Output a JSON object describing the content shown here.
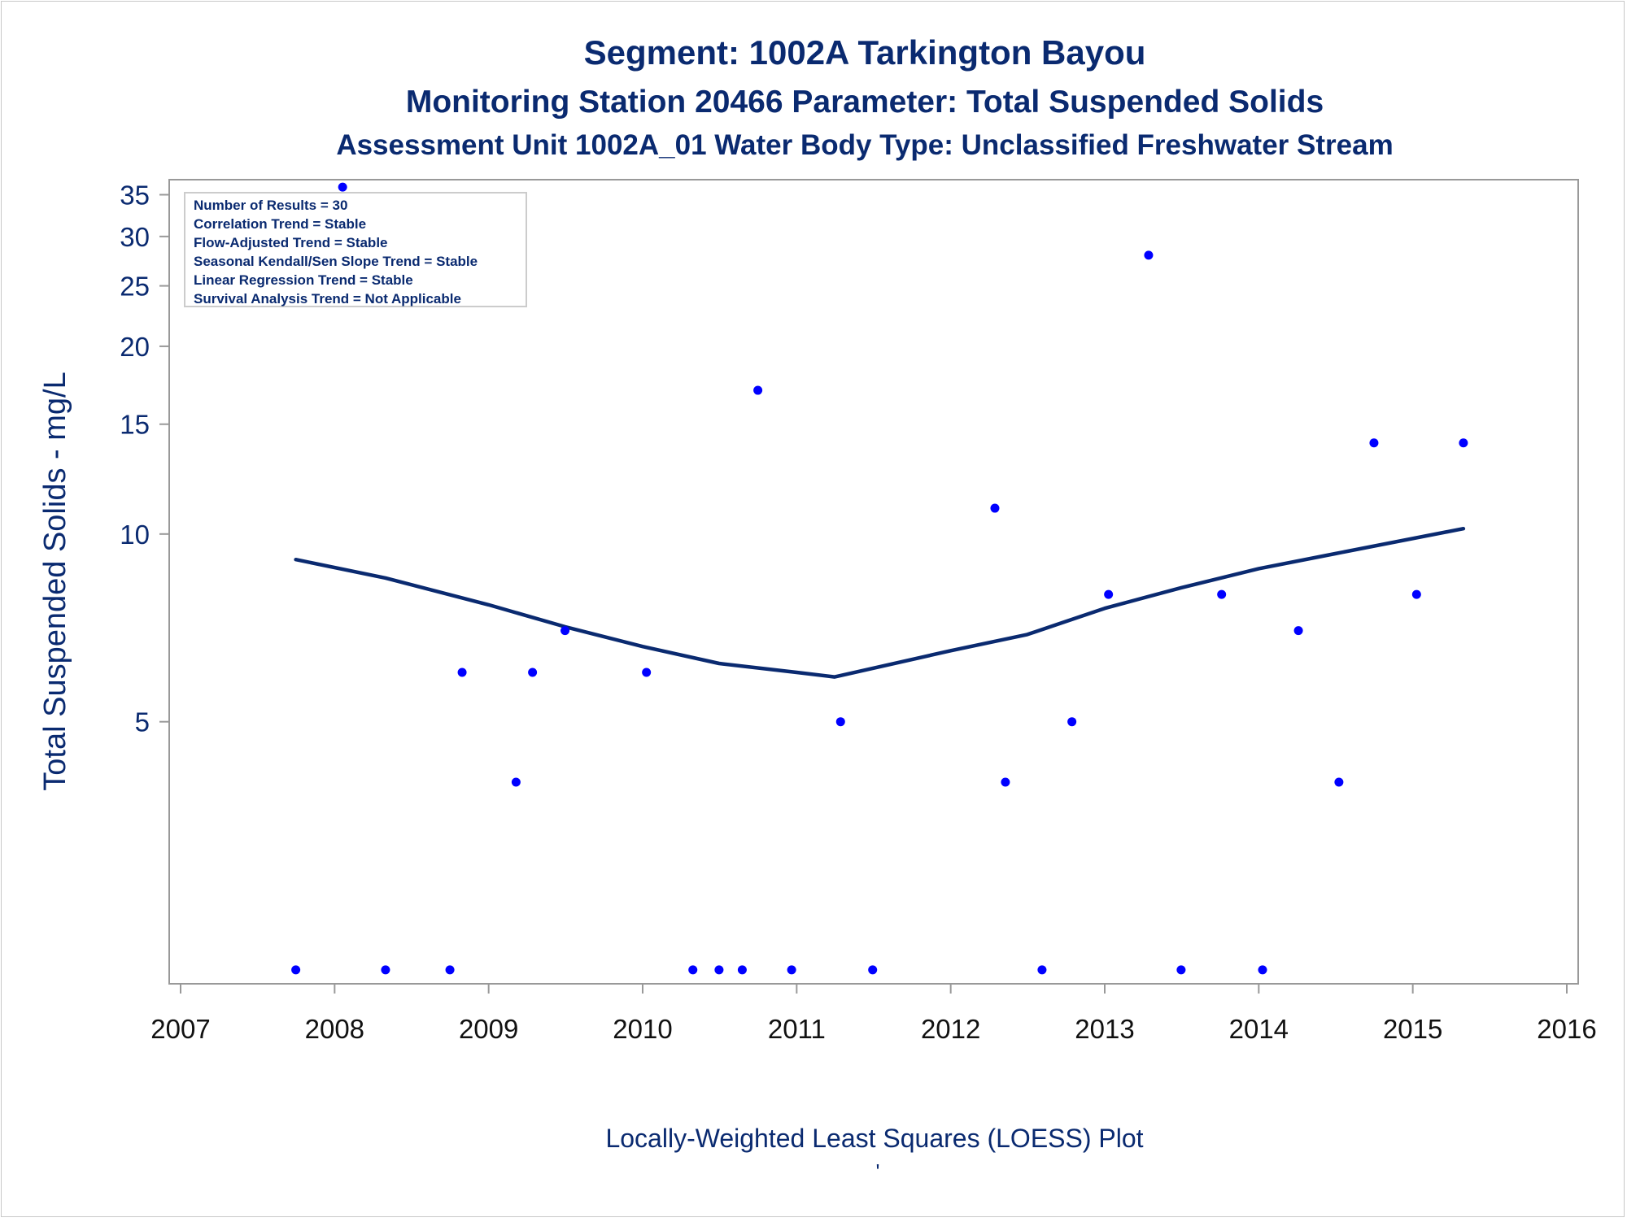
{
  "chart_data": {
    "type": "scatter",
    "title": "Segment: 1002A  Tarkington Bayou",
    "subtitle": "Monitoring Station 20466 Parameter: Total Suspended Solids",
    "subtitle2": "Assessment Unit 1002A_01   Water Body Type: Unclassified Freshwater Stream",
    "ylabel": "Total Suspended Solids - mg/L",
    "xlabel": "Locally-Weighted Least Squares (LOESS) Plot",
    "footnote": "'",
    "y_scale": "log",
    "xlim": [
      "2007-01-01",
      "2016-01-01"
    ],
    "ylim": [
      1.9,
      37
    ],
    "x_ticks": [
      "2007",
      "2008",
      "2009",
      "2010",
      "2011",
      "2012",
      "2013",
      "2014",
      "2015",
      "2016"
    ],
    "y_ticks": [
      5,
      10,
      15,
      20,
      25,
      30,
      35
    ],
    "y_tick_labels": [
      "5",
      "10",
      "15",
      "20",
      "25",
      "30",
      "35"
    ],
    "grid": false,
    "legend": {
      "placement": "top-left",
      "lines": [
        "Number of Results = 30",
        "Correlation Trend = Stable",
        "Flow-Adjusted Trend = Stable",
        "Seasonal Kendall/Sen Slope Trend = Stable",
        "Linear Regression Trend = Stable",
        "Survival Analysis Trend = Not Applicable"
      ]
    },
    "colors": {
      "points": "#0000ff",
      "loess": "#0a2a70",
      "text": "#0a2a70",
      "axis": "#999999"
    },
    "points": [
      {
        "x": "2007-10-01",
        "y": 2
      },
      {
        "x": "2008-01-20",
        "y": 36
      },
      {
        "x": "2008-05-01",
        "y": 2
      },
      {
        "x": "2008-10-01",
        "y": 2
      },
      {
        "x": "2008-10-30",
        "y": 6
      },
      {
        "x": "2009-03-07",
        "y": 4
      },
      {
        "x": "2009-04-15",
        "y": 6
      },
      {
        "x": "2009-07-01",
        "y": 7
      },
      {
        "x": "2010-01-10",
        "y": 6
      },
      {
        "x": "2010-04-30",
        "y": 2
      },
      {
        "x": "2010-07-01",
        "y": 2
      },
      {
        "x": "2010-08-25",
        "y": 2
      },
      {
        "x": "2010-10-01",
        "y": 17
      },
      {
        "x": "2010-12-20",
        "y": 2
      },
      {
        "x": "2011-04-15",
        "y": 5
      },
      {
        "x": "2011-06-30",
        "y": 2
      },
      {
        "x": "2012-04-15",
        "y": 11
      },
      {
        "x": "2012-05-10",
        "y": 4
      },
      {
        "x": "2012-08-05",
        "y": 2
      },
      {
        "x": "2012-10-15",
        "y": 5
      },
      {
        "x": "2013-01-10",
        "y": 8
      },
      {
        "x": "2013-04-15",
        "y": 28
      },
      {
        "x": "2013-07-01",
        "y": 2
      },
      {
        "x": "2013-10-05",
        "y": 8
      },
      {
        "x": "2014-01-10",
        "y": 2
      },
      {
        "x": "2014-04-05",
        "y": 7
      },
      {
        "x": "2014-07-10",
        "y": 4
      },
      {
        "x": "2014-10-01",
        "y": 14
      },
      {
        "x": "2015-01-10",
        "y": 8
      },
      {
        "x": "2015-05-01",
        "y": 14
      }
    ],
    "loess": [
      {
        "x": "2007-10-01",
        "y": 9.1
      },
      {
        "x": "2008-05-01",
        "y": 8.5
      },
      {
        "x": "2009-01-01",
        "y": 7.7
      },
      {
        "x": "2009-07-01",
        "y": 7.1
      },
      {
        "x": "2010-01-01",
        "y": 6.6
      },
      {
        "x": "2010-07-01",
        "y": 6.2
      },
      {
        "x": "2011-01-01",
        "y": 6.0
      },
      {
        "x": "2011-04-01",
        "y": 5.9
      },
      {
        "x": "2012-01-01",
        "y": 6.5
      },
      {
        "x": "2012-07-01",
        "y": 6.9
      },
      {
        "x": "2013-01-01",
        "y": 7.6
      },
      {
        "x": "2013-07-01",
        "y": 8.2
      },
      {
        "x": "2014-01-01",
        "y": 8.8
      },
      {
        "x": "2014-07-01",
        "y": 9.3
      },
      {
        "x": "2015-05-01",
        "y": 10.2
      }
    ]
  }
}
